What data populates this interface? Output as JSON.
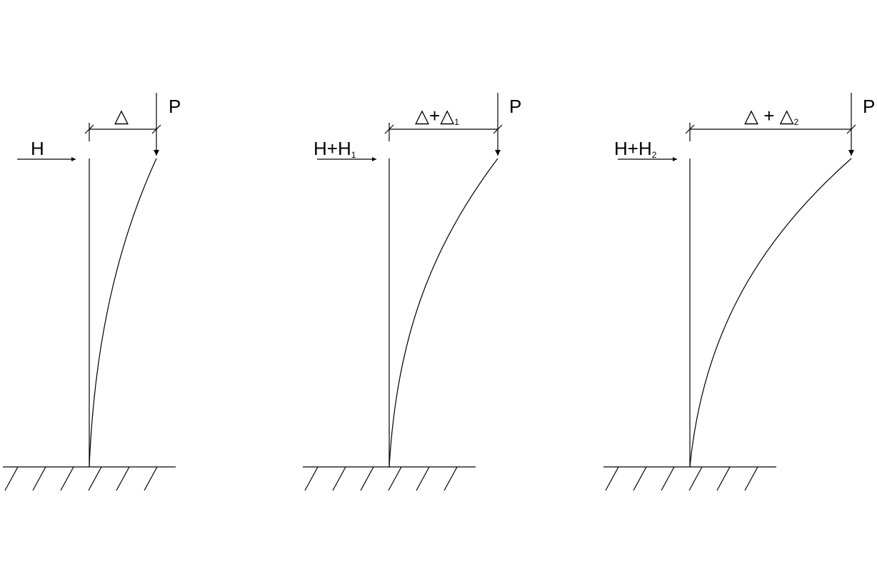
{
  "panels": [
    {
      "id": "panel-1",
      "load_vertical": "P",
      "load_horizontal": {
        "main": "H",
        "plus": "",
        "sub": ""
      },
      "displacement": {
        "main": "△",
        "plus": "",
        "second": "",
        "sub": ""
      }
    },
    {
      "id": "panel-2",
      "load_vertical": "P",
      "load_horizontal": {
        "main": "H",
        "plus": "+H",
        "sub": "1"
      },
      "displacement": {
        "main": "△",
        "plus": "+",
        "second": "△",
        "sub": "1"
      }
    },
    {
      "id": "panel-3",
      "load_vertical": "P",
      "load_horizontal": {
        "main": "H",
        "plus": "+H",
        "sub": "2"
      },
      "displacement": {
        "main": "△",
        "plus": " + ",
        "second": "△",
        "sub": "2"
      }
    }
  ]
}
